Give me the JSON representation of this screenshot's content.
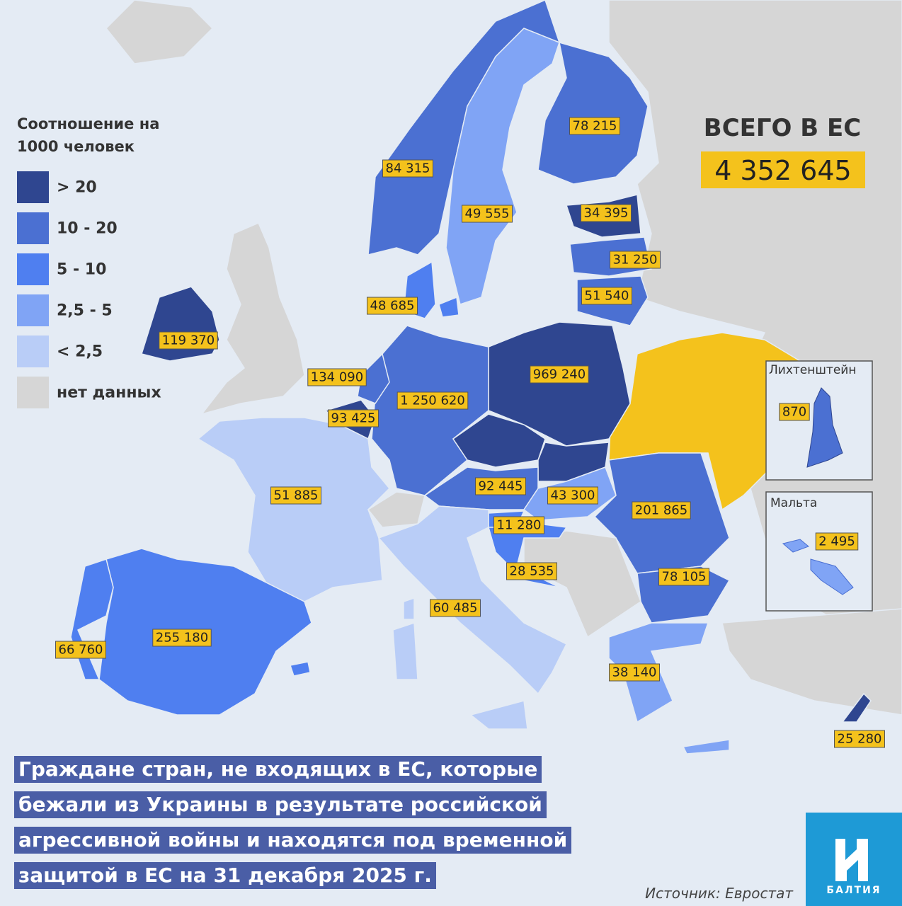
{
  "legend": {
    "title": [
      "Соотношение на",
      "1000 человек"
    ],
    "items": [
      {
        "label": "> 20",
        "color": "#2f4690"
      },
      {
        "label": "10 - 20",
        "color": "#4b70d2"
      },
      {
        "label": "5 - 10",
        "color": "#4f7ff0"
      },
      {
        "label": "2,5 - 5",
        "color": "#80a4f5"
      },
      {
        "label": "< 2,5",
        "color": "#b9cdf7"
      },
      {
        "label": "нет данных",
        "color": "#d6d6d6"
      }
    ]
  },
  "total": {
    "title": "ВСЕГО В ЕС",
    "value": "4 352 645"
  },
  "labels": [
    "78 215",
    "84 315",
    "49 555",
    "34 395",
    "31 250",
    "51 540",
    "48 685",
    "119 370",
    "134 090",
    "969 240",
    "1 250 620",
    "93 425",
    "51 885",
    "92 445",
    "43 300",
    "201 865",
    "11 280",
    "28 535",
    "78 105",
    "60 485",
    "255 180",
    "66 760",
    "38 140",
    "25 280"
  ],
  "insets": [
    {
      "title": "Лихтенштейн",
      "label": "870"
    },
    {
      "title": "Мальта",
      "label": "2 495"
    }
  ],
  "caption": [
    "Граждане стран, не входящих в ЕС, которые",
    "бежали из Украины в результате российской",
    "агрессивной войны и находятся под временной",
    "защитой в ЕС на 31 декабря 2025 г."
  ],
  "source": "Источник: Евростат",
  "logo": "БАЛТИЯ"
}
